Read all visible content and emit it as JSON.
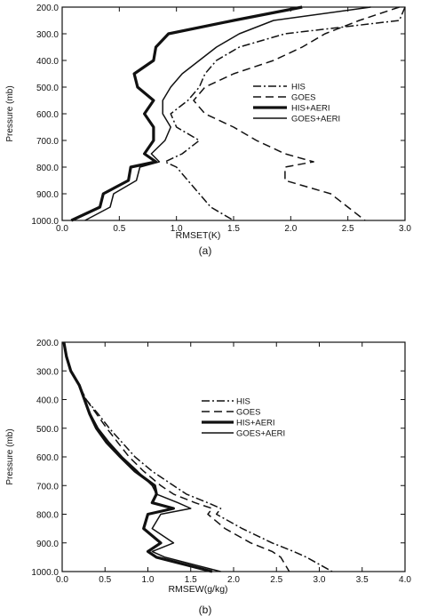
{
  "chart_data": [
    {
      "type": "line",
      "panel_label": "(a)",
      "xlabel": "RMSET(K)",
      "ylabel": "Pressure (mb)",
      "xlim": [
        0.0,
        3.0
      ],
      "ylim": [
        200.0,
        1000.0
      ],
      "y_inverted": true,
      "grid": false,
      "legend_position": "right-middle",
      "x_ticks": [
        "0.0",
        "0.5",
        "1.0",
        "1.5",
        "2.0",
        "2.5",
        "3.0"
      ],
      "y_ticks": [
        "200.0",
        "300.0",
        "400.0",
        "500.0",
        "600.0",
        "700.0",
        "800.0",
        "900.0",
        "1000.0"
      ],
      "y": [
        200,
        250,
        300,
        350,
        400,
        450,
        500,
        550,
        600,
        650,
        700,
        750,
        780,
        800,
        850,
        900,
        950,
        1000
      ],
      "series": [
        {
          "name": "HIS",
          "style": "dashdot",
          "width": 1.5,
          "x": [
            3.0,
            2.95,
            1.95,
            1.55,
            1.35,
            1.25,
            1.2,
            1.1,
            0.95,
            1.0,
            1.2,
            1.05,
            0.9,
            1.0,
            1.1,
            1.2,
            1.3,
            1.5
          ]
        },
        {
          "name": "GOES",
          "style": "dashed",
          "width": 1.5,
          "x": [
            2.95,
            2.6,
            2.3,
            2.1,
            1.85,
            1.5,
            1.25,
            1.15,
            1.25,
            1.5,
            1.7,
            1.95,
            2.2,
            1.95,
            1.95,
            2.35,
            2.5,
            2.65
          ]
        },
        {
          "name": "HIS+AERI",
          "style": "solid",
          "width": 3.2,
          "x": [
            2.1,
            1.5,
            0.93,
            0.82,
            0.8,
            0.63,
            0.66,
            0.8,
            0.72,
            0.8,
            0.8,
            0.72,
            0.82,
            0.6,
            0.58,
            0.36,
            0.33,
            0.08
          ]
        },
        {
          "name": "GOES+AERI",
          "style": "solid",
          "width": 1.5,
          "x": [
            2.7,
            1.85,
            1.55,
            1.35,
            1.2,
            1.05,
            0.95,
            0.88,
            0.88,
            0.95,
            0.9,
            0.78,
            0.85,
            0.68,
            0.65,
            0.45,
            0.42,
            0.2
          ]
        }
      ]
    },
    {
      "type": "line",
      "panel_label": "(b)",
      "xlabel": "RMSEW(g/kg)",
      "ylabel": "Pressure (mb)",
      "xlim": [
        0.0,
        4.0
      ],
      "ylim": [
        200.0,
        1000.0
      ],
      "y_inverted": true,
      "grid": false,
      "legend_position": "right-middle",
      "x_ticks": [
        "0.0",
        "0.5",
        "1.0",
        "1.5",
        "2.0",
        "2.5",
        "3.0",
        "3.5",
        "4.0"
      ],
      "y_ticks": [
        "200.0",
        "300.0",
        "400.0",
        "500.0",
        "600.0",
        "700.0",
        "800.0",
        "900.0",
        "1000.0"
      ],
      "y": [
        200,
        250,
        300,
        350,
        400,
        450,
        500,
        550,
        600,
        650,
        700,
        730,
        760,
        780,
        800,
        850,
        900,
        930,
        950,
        1000
      ],
      "series": [
        {
          "name": "HIS",
          "style": "dashdot",
          "width": 1.5,
          "x": [
            0.02,
            0.05,
            0.1,
            0.2,
            0.28,
            0.42,
            0.55,
            0.7,
            0.85,
            1.05,
            1.3,
            1.45,
            1.7,
            1.85,
            1.8,
            2.1,
            2.45,
            2.7,
            2.85,
            3.15
          ]
        },
        {
          "name": "GOES",
          "style": "dashed",
          "width": 1.5,
          "x": [
            0.02,
            0.05,
            0.1,
            0.2,
            0.28,
            0.4,
            0.52,
            0.65,
            0.78,
            0.95,
            1.15,
            1.3,
            1.55,
            1.75,
            1.7,
            1.9,
            2.2,
            2.45,
            2.55,
            2.65
          ]
        },
        {
          "name": "HIS+AERI",
          "style": "solid",
          "width": 3.2,
          "x": [
            0.02,
            0.05,
            0.1,
            0.2,
            0.26,
            0.32,
            0.4,
            0.52,
            0.68,
            0.85,
            1.08,
            1.1,
            1.05,
            1.3,
            1.0,
            0.95,
            1.15,
            1.0,
            1.1,
            1.75
          ]
        },
        {
          "name": "GOES+AERI",
          "style": "solid",
          "width": 1.5,
          "x": [
            0.02,
            0.05,
            0.1,
            0.2,
            0.26,
            0.33,
            0.42,
            0.55,
            0.7,
            0.88,
            1.05,
            1.1,
            1.35,
            1.5,
            1.15,
            1.05,
            1.3,
            1.05,
            1.2,
            1.85
          ]
        }
      ]
    }
  ]
}
